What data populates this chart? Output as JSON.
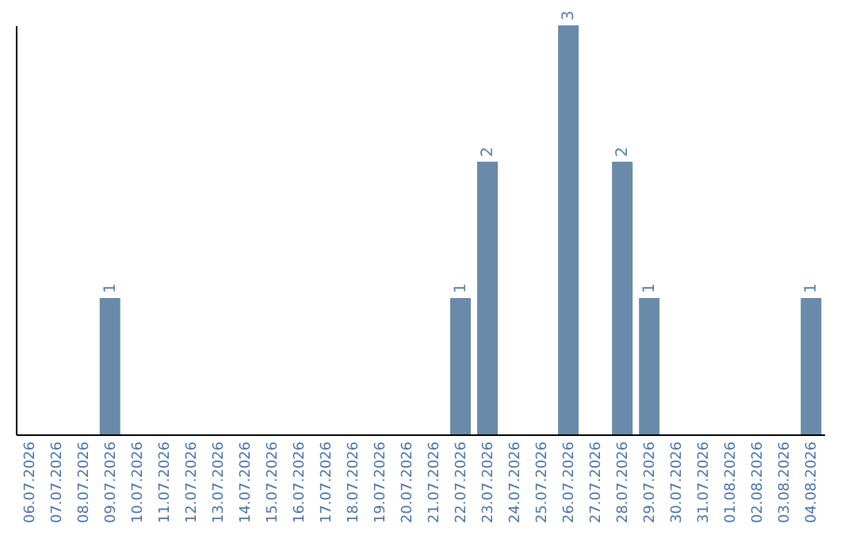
{
  "chart_data": {
    "type": "bar",
    "categories": [
      "06.07.2026",
      "07.07.2026",
      "08.07.2026",
      "09.07.2026",
      "10.07.2026",
      "11.07.2026",
      "12.07.2026",
      "13.07.2026",
      "14.07.2026",
      "15.07.2026",
      "16.07.2026",
      "17.07.2026",
      "18.07.2026",
      "19.07.2026",
      "20.07.2026",
      "21.07.2026",
      "22.07.2026",
      "23.07.2026",
      "24.07.2026",
      "25.07.2026",
      "26.07.2026",
      "27.07.2026",
      "28.07.2026",
      "29.07.2026",
      "30.07.2026",
      "31.07.2026",
      "01.08.2026",
      "02.08.2026",
      "03.08.2026",
      "04.08.2026"
    ],
    "values": [
      0,
      0,
      0,
      1,
      0,
      0,
      0,
      0,
      0,
      0,
      0,
      0,
      0,
      0,
      0,
      0,
      1,
      2,
      0,
      0,
      3,
      0,
      2,
      1,
      0,
      0,
      0,
      0,
      0,
      1
    ],
    "value_labels": [
      null,
      null,
      null,
      "1",
      null,
      null,
      null,
      null,
      null,
      null,
      null,
      null,
      null,
      null,
      null,
      null,
      "1",
      "2",
      null,
      null,
      "3",
      null,
      "2",
      "1",
      null,
      null,
      null,
      null,
      null,
      "1"
    ],
    "color": "#6a8aaa",
    "tick_labels": "x"
  }
}
